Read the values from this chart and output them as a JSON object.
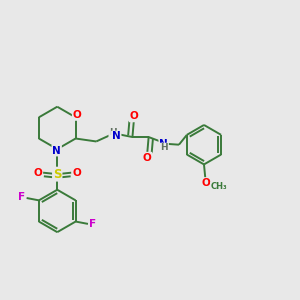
{
  "background_color": "#e8e8e8",
  "bond_color": "#3a7a3a",
  "atom_colors": {
    "O": "#ff0000",
    "N": "#0000cc",
    "S": "#cccc00",
    "F": "#cc00cc",
    "H": "#607060",
    "C": "#3a7a3a"
  },
  "figsize": [
    3.0,
    3.0
  ],
  "dpi": 100
}
